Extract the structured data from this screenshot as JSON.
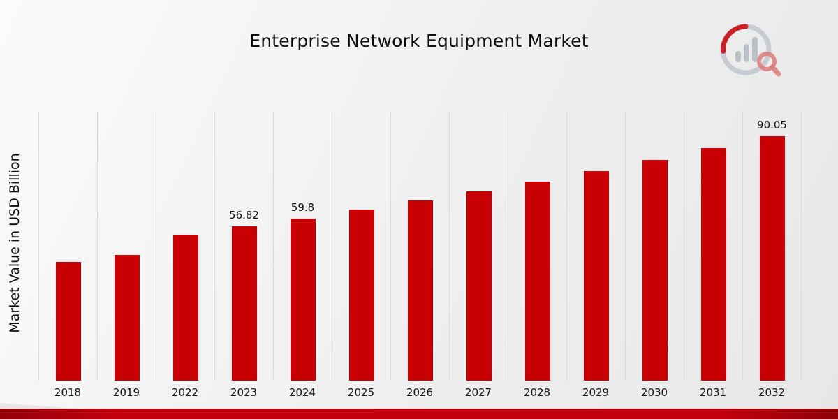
{
  "page": {
    "title": "Enterprise Network Equipment Market"
  },
  "chart_data": {
    "type": "bar",
    "title": "Enterprise Network Equipment Market",
    "xlabel": "",
    "ylabel": "Market Value in USD Billion",
    "categories": [
      "2018",
      "2019",
      "2022",
      "2023",
      "2024",
      "2025",
      "2026",
      "2027",
      "2028",
      "2029",
      "2030",
      "2031",
      "2032"
    ],
    "values": [
      43.7,
      46.2,
      53.9,
      56.82,
      59.8,
      63.0,
      66.3,
      69.8,
      73.4,
      77.2,
      81.3,
      85.7,
      90.05
    ],
    "data_labels": {
      "2023": "56.82",
      "2024": "59.8",
      "2032": "90.05"
    },
    "bar_color": "#c80004",
    "gridline_color": "#d9d9d9",
    "grid": "vertical-only",
    "legend": "none",
    "ylim": [
      0,
      95
    ]
  },
  "branding": {
    "logo_name": "market-research-logo",
    "accent_red": "#c40010",
    "logo_gray": "#b9c0c7"
  }
}
